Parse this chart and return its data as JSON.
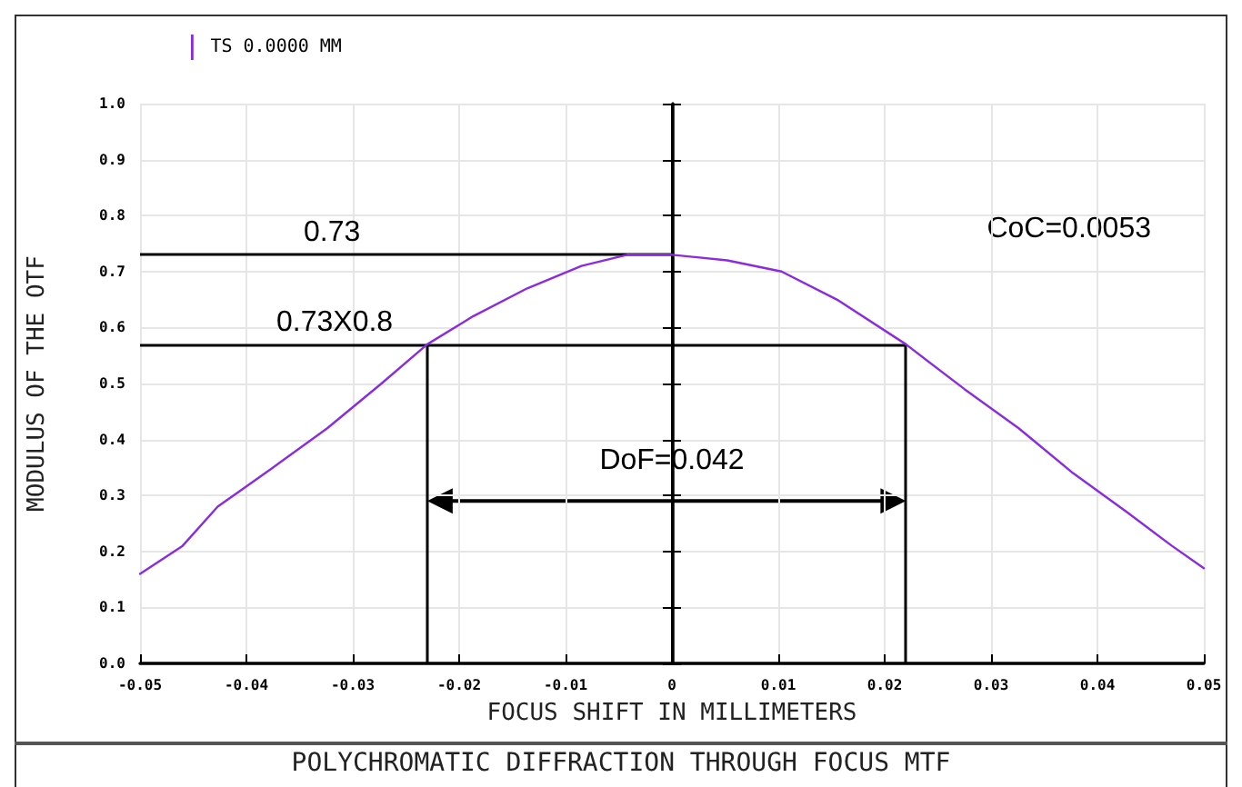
{
  "chart_data": {
    "type": "line",
    "title": "POLYCHROMATIC DIFFRACTION THROUGH FOCUS MTF",
    "xlabel": "FOCUS SHIFT IN MILLIMETERS",
    "ylabel": "MODULUS OF THE OTF",
    "legend": "top left",
    "grid": true,
    "marker": "none",
    "line_style": "solid",
    "xlim": [
      -0.05,
      0.05
    ],
    "xticks": [
      -0.05,
      -0.04,
      -0.03,
      -0.02,
      -0.01,
      0,
      0.01,
      0.02,
      0.03,
      0.04,
      0.05
    ],
    "ylim": [
      0,
      1
    ],
    "yticks": [
      {
        "value": 0,
        "label": "0.0"
      },
      0.1,
      0.2,
      0.3,
      0.4,
      0.5,
      0.6,
      0.7,
      0.8,
      0.9,
      {
        "value": 1,
        "label": "1.0"
      }
    ],
    "series": [
      {
        "name": "TS 0.0000 MM",
        "color": "#8a2be2",
        "x": [
          -0.05,
          -0.046,
          -0.0427,
          -0.0375,
          -0.0324,
          -0.0273,
          -0.023,
          -0.0187,
          -0.0136,
          -0.0085,
          -0.0042,
          0,
          0.0052,
          0.0103,
          0.0155,
          0.022,
          0.0275,
          0.0326,
          0.0377,
          0.0428,
          0.047,
          0.05
        ],
        "values": [
          0.16,
          0.21,
          0.28,
          0.35,
          0.42,
          0.5,
          0.57,
          0.62,
          0.67,
          0.71,
          0.73,
          0.73,
          0.72,
          0.7,
          0.65,
          0.57,
          0.49,
          0.42,
          0.34,
          0.27,
          0.21,
          0.17
        ]
      }
    ],
    "ref_lines": [
      {
        "axis": "y",
        "value": 0.73,
        "label": "0.73",
        "color": "#000000"
      },
      {
        "axis": "y",
        "value": 0.57,
        "label": "0.73X0.8",
        "color": "#000000"
      },
      {
        "axis": "x",
        "value": -0.023,
        "color": "#000000"
      },
      {
        "axis": "x",
        "value": 0,
        "color": "#000000"
      },
      {
        "axis": "x",
        "value": 0.022,
        "color": "#000000"
      }
    ],
    "annotations": [
      "CoC=0.0053",
      {
        "text": "DoF=0.042",
        "x": 0,
        "y": 0.29
      }
    ]
  }
}
